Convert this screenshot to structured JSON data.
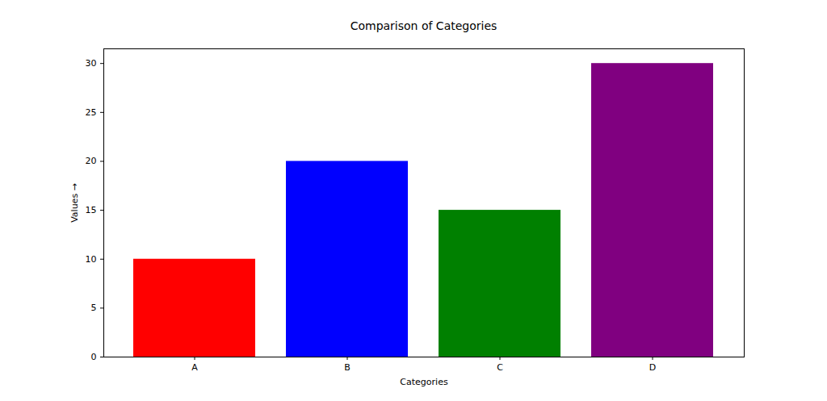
{
  "chart_data": {
    "type": "bar",
    "title": "Comparison of Categories",
    "x_label": "Categories",
    "y_label": "Values",
    "categories": [
      "A",
      "B",
      "C",
      "D"
    ],
    "values": [
      10,
      20,
      15,
      30
    ],
    "colors": [
      "red",
      "blue",
      "green",
      "purple"
    ],
    "ylim": [
      0,
      31.5
    ],
    "yticks": [
      0,
      5,
      10,
      15,
      20,
      25,
      30
    ],
    "grid": false
  }
}
